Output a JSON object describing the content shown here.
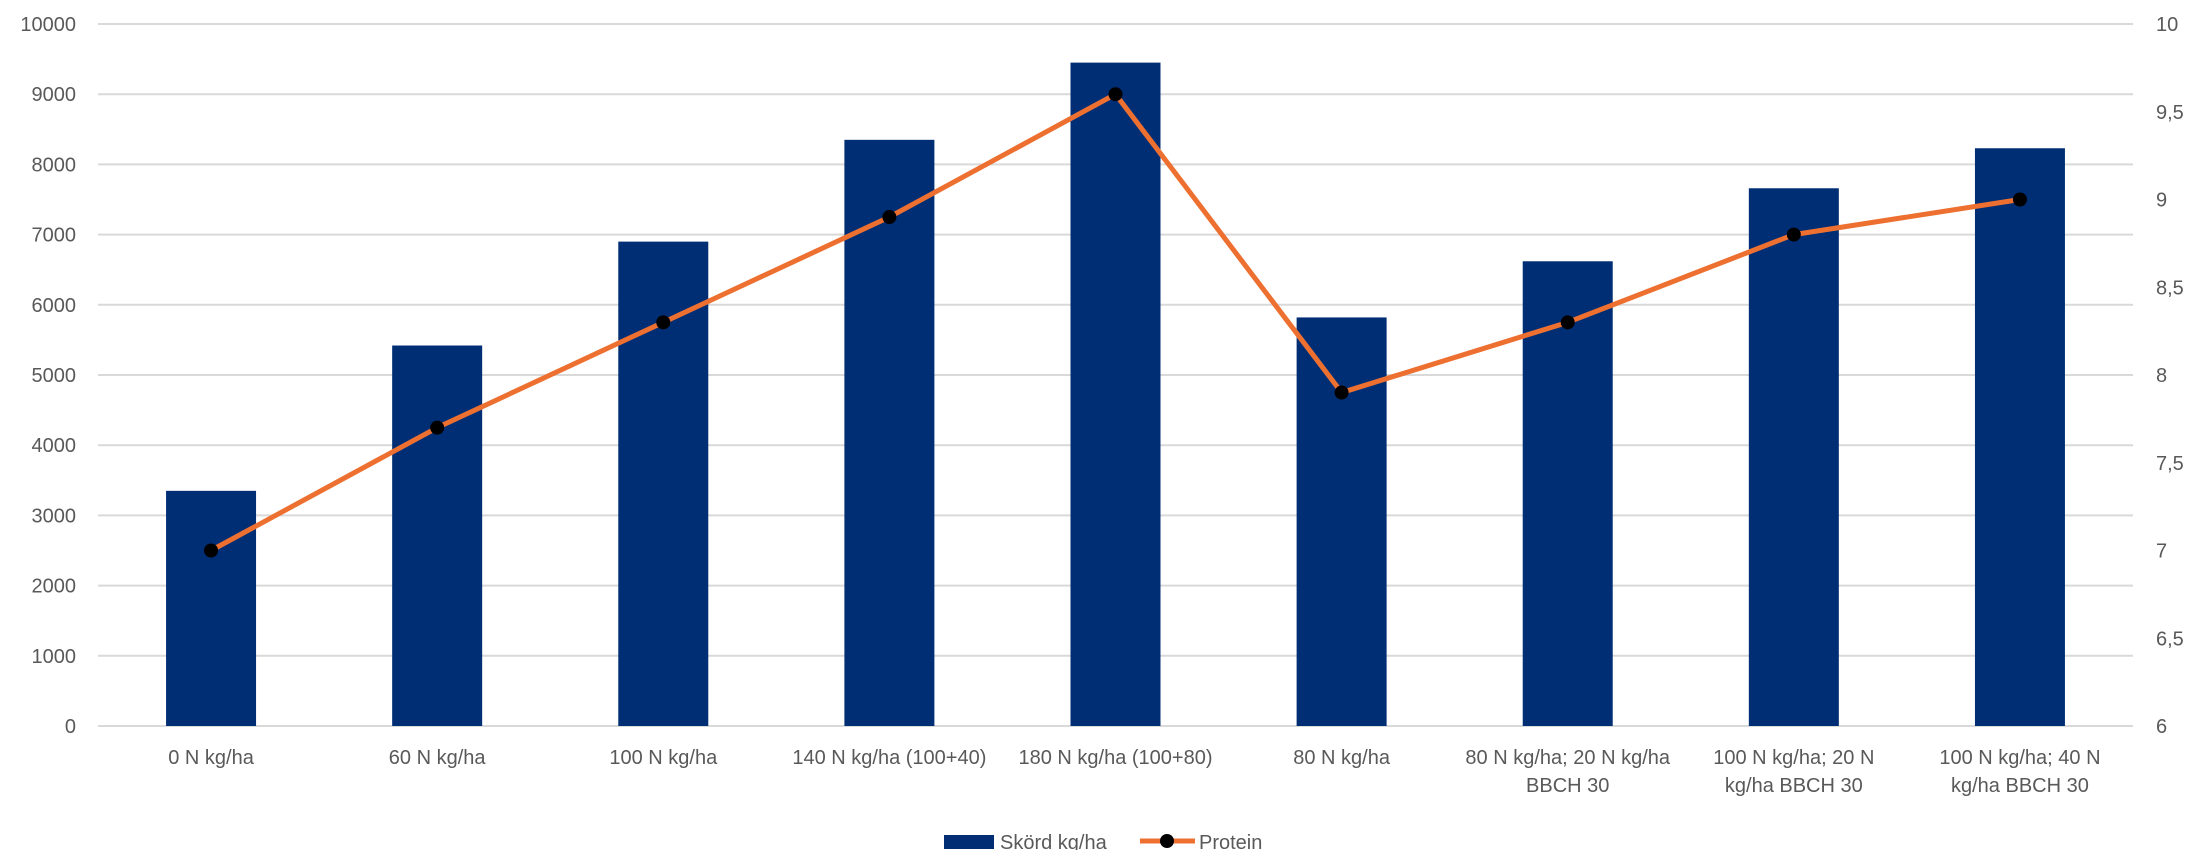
{
  "chart_data": {
    "type": "bar",
    "categories": [
      [
        "0 N kg/ha"
      ],
      [
        "60 N kg/ha"
      ],
      [
        "100 N kg/ha"
      ],
      [
        "140 N kg/ha (100+40)"
      ],
      [
        "180 N kg/ha (100+80)"
      ],
      [
        "80 N kg/ha"
      ],
      [
        "80 N kg/ha; 20 N kg/ha",
        "BBCH 30"
      ],
      [
        "100 N kg/ha; 20 N",
        "kg/ha BBCH 30"
      ],
      [
        "100 N kg/ha; 40 N",
        "kg/ha BBCH 30"
      ]
    ],
    "series": [
      {
        "name": "Skörd kg/ha",
        "type": "bar",
        "axis": "left",
        "color": "#002E74",
        "values": [
          3350,
          5420,
          6900,
          8350,
          9450,
          5820,
          6620,
          7660,
          8230
        ]
      },
      {
        "name": "Protein",
        "type": "line",
        "axis": "right",
        "color": "#ED7031",
        "marker_color": "#000000",
        "values": [
          7.0,
          7.7,
          8.3,
          8.9,
          9.6,
          7.9,
          8.3,
          8.8,
          9.0
        ]
      }
    ],
    "y_left": {
      "min": 0,
      "max": 10000,
      "step": 1000,
      "ticks": [
        "0",
        "1000",
        "2000",
        "3000",
        "4000",
        "5000",
        "6000",
        "7000",
        "8000",
        "9000",
        "10000"
      ]
    },
    "y_right": {
      "min": 6,
      "max": 10,
      "step": 0.5,
      "ticks": [
        "6",
        "6,5",
        "7",
        "7,5",
        "8",
        "8,5",
        "9",
        "9,5",
        "10"
      ]
    },
    "grid": true,
    "legend_position": "bottom",
    "colors": {
      "gridline": "#D9D9D9",
      "axis_text": "#595959"
    }
  }
}
